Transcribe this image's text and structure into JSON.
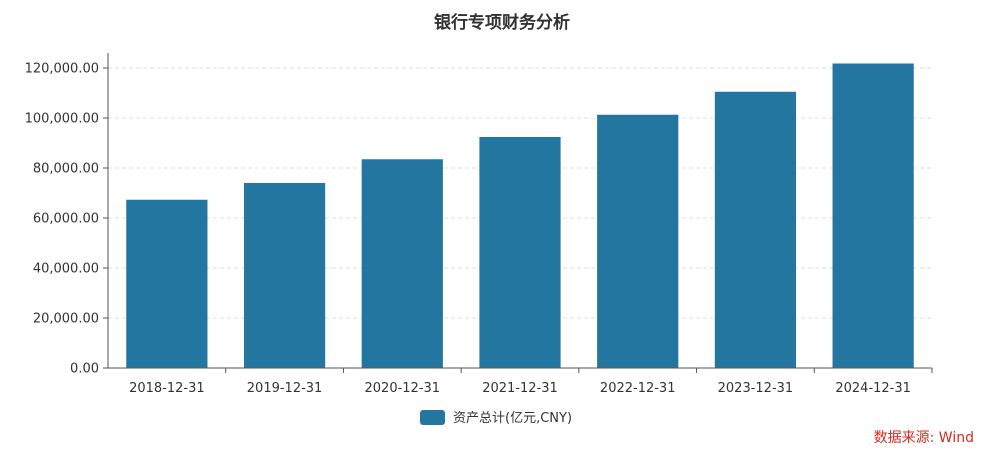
{
  "chart_data": {
    "type": "bar",
    "title": "银行专项财务分析",
    "categories": [
      "2018-12-31",
      "2019-12-31",
      "2020-12-31",
      "2021-12-31",
      "2022-12-31",
      "2023-12-31",
      "2024-12-31"
    ],
    "series": [
      {
        "name": "资产总计(亿元,CNY)",
        "values": [
          67300,
          74000,
          83500,
          92400,
          101300,
          110500,
          121800
        ]
      }
    ],
    "y_ticks": [
      "0.00",
      "20,000.00",
      "40,000.00",
      "60,000.00",
      "80,000.00",
      "100,000.00",
      "120,000.00"
    ],
    "ylim": [
      0,
      126000
    ],
    "grid": true,
    "legend_position": "bottom-center",
    "bar_color": "#2276a0"
  },
  "source": "数据来源: Wind"
}
